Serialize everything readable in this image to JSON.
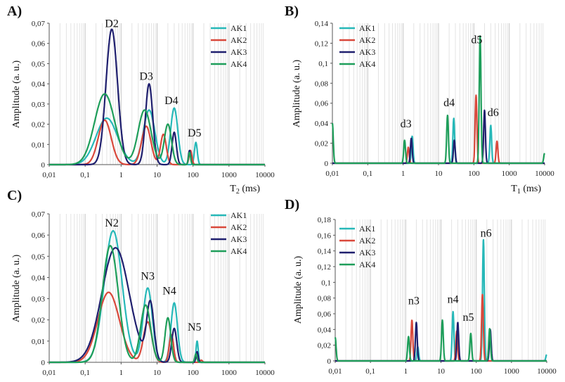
{
  "chart_data": [
    {
      "panel": "A)",
      "type": "line",
      "xscale": "log",
      "xlabel": "T2 (ms)",
      "ylabel": "Amplitude (a. u.)",
      "xlim": [
        0.01,
        10000
      ],
      "ylim": [
        0,
        0.07
      ],
      "xticks": [
        "0,01",
        "0,1",
        "1",
        "10",
        "100",
        "1000",
        "10000"
      ],
      "yticks": [
        "0",
        "0,01",
        "0,02",
        "0,03",
        "0,04",
        "0,05",
        "0,06",
        "0,07"
      ],
      "peak_labels": [
        {
          "text": "D2",
          "x": 0.55,
          "y": 0.068
        },
        {
          "text": "D3",
          "x": 5,
          "y": 0.042
        },
        {
          "text": "D4",
          "x": 25,
          "y": 0.03
        },
        {
          "text": "D5",
          "x": 110,
          "y": 0.014
        }
      ],
      "series": [
        {
          "name": "AK1",
          "color": "#26b8b8",
          "peaks": [
            [
              0.4,
              0.023,
              0.3
            ],
            [
              6,
              0.027,
              0.16
            ],
            [
              30,
              0.028,
              0.1
            ],
            [
              120,
              0.011,
              0.04
            ]
          ]
        },
        {
          "name": "AK2",
          "color": "#d9483b",
          "peaks": [
            [
              0.35,
              0.022,
              0.18
            ],
            [
              5,
              0.019,
              0.13
            ],
            [
              15,
              0.015,
              0.08
            ],
            [
              85,
              0.007,
              0.04
            ]
          ]
        },
        {
          "name": "AK3",
          "color": "#1f1f6e",
          "peaks": [
            [
              0.55,
              0.067,
              0.16
            ],
            [
              6,
              0.04,
              0.1
            ],
            [
              30,
              0.016,
              0.06
            ],
            [
              80,
              0.007,
              0.03
            ]
          ]
        },
        {
          "name": "AK4",
          "color": "#1e9e5a",
          "peaks": [
            [
              0.35,
              0.035,
              0.28
            ],
            [
              4.5,
              0.027,
              0.18
            ],
            [
              20,
              0.02,
              0.1
            ],
            [
              80,
              0.006,
              0.03
            ]
          ]
        }
      ],
      "legend": "top-right",
      "grid": "vertical log gridlines"
    },
    {
      "panel": "B)",
      "type": "line",
      "xscale": "log",
      "xlabel": "T1 (ms)",
      "ylabel": "Amplitude (a. u.)",
      "xlim": [
        0.01,
        10000
      ],
      "ylim": [
        0,
        0.14
      ],
      "xticks": [
        "0,01",
        "0,1",
        "1",
        "10",
        "100",
        "1000",
        "10000"
      ],
      "yticks": [
        "0",
        "0,02",
        "0,04",
        "0,06",
        "0,08",
        "0,1",
        "0,12",
        "0,14"
      ],
      "peak_labels": [
        {
          "text": "d3",
          "x": 1.2,
          "y": 0.036
        },
        {
          "text": "d4",
          "x": 20,
          "y": 0.057
        },
        {
          "text": "d5",
          "x": 120,
          "y": 0.12
        },
        {
          "text": "d6",
          "x": 350,
          "y": 0.047
        }
      ],
      "series": [
        {
          "name": "AK1",
          "color": "#26b8b8",
          "peaks": [
            [
              1.8,
              0.027,
              0.025
            ],
            [
              27,
              0.045,
              0.025
            ],
            [
              300,
              0.038,
              0.025
            ]
          ]
        },
        {
          "name": "AK2",
          "color": "#d9483b",
          "peaks": [
            [
              1.4,
              0.016,
              0.025
            ],
            [
              115,
              0.068,
              0.025
            ],
            [
              450,
              0.022,
              0.025
            ]
          ]
        },
        {
          "name": "AK3",
          "color": "#1f1f6e",
          "peaks": [
            [
              1.7,
              0.025,
              0.025
            ],
            [
              28,
              0.023,
              0.025
            ],
            [
              200,
              0.053,
              0.025
            ]
          ]
        },
        {
          "name": "AK4",
          "color": "#1e9e5a",
          "peaks": [
            [
              0.01,
              0.04,
              0.025
            ],
            [
              1.1,
              0.023,
              0.025
            ],
            [
              18,
              0.048,
              0.025
            ],
            [
              150,
              0.128,
              0.025
            ],
            [
              10000,
              0.01,
              0.025
            ]
          ]
        }
      ],
      "legend": "top-left",
      "grid": "vertical log gridlines"
    },
    {
      "panel": "C)",
      "type": "line",
      "xscale": "log",
      "xlabel": "",
      "ylabel": "Amplitude (a. u.)",
      "xlim": [
        0.01,
        10000
      ],
      "ylim": [
        0,
        0.07
      ],
      "xticks": [
        "0,01",
        "0,1",
        "1",
        "10",
        "100",
        "1000",
        "10000"
      ],
      "yticks": [
        "0",
        "0,01",
        "0,02",
        "0,03",
        "0,04",
        "0,05",
        "0,06",
        "0,07"
      ],
      "peak_labels": [
        {
          "text": "N2",
          "x": 0.55,
          "y": 0.064
        },
        {
          "text": "N3",
          "x": 5.5,
          "y": 0.039
        },
        {
          "text": "N4",
          "x": 22,
          "y": 0.032
        },
        {
          "text": "N5",
          "x": 110,
          "y": 0.015
        }
      ],
      "series": [
        {
          "name": "AK1",
          "color": "#26b8b8",
          "peaks": [
            [
              0.6,
              0.062,
              0.25
            ],
            [
              5.5,
              0.035,
              0.13
            ],
            [
              30,
              0.028,
              0.09
            ],
            [
              130,
              0.01,
              0.03
            ]
          ]
        },
        {
          "name": "AK2",
          "color": "#d9483b",
          "peaks": [
            [
              0.45,
              0.033,
              0.3
            ],
            [
              5.5,
              0.019,
              0.12
            ],
            [
              25,
              0.013,
              0.06
            ],
            [
              170,
              0.001,
              0.03
            ]
          ]
        },
        {
          "name": "AK3",
          "color": "#1f1f6e",
          "peaks": [
            [
              0.7,
              0.054,
              0.38
            ],
            [
              6.5,
              0.027,
              0.1
            ],
            [
              30,
              0.016,
              0.07
            ],
            [
              130,
              0.005,
              0.03
            ]
          ]
        },
        {
          "name": "AK4",
          "color": "#1e9e5a",
          "peaks": [
            [
              0.5,
              0.055,
              0.22
            ],
            [
              4.8,
              0.027,
              0.14
            ],
            [
              20,
              0.021,
              0.08
            ],
            [
              120,
              0.004,
              0.03
            ]
          ]
        }
      ],
      "legend": "top-right",
      "grid": "vertical log gridlines"
    },
    {
      "panel": "D)",
      "type": "line",
      "xscale": "log",
      "xlabel": "",
      "ylabel": "Amplitude (a. u.)",
      "xlim": [
        0.01,
        10000
      ],
      "ylim": [
        0,
        0.18
      ],
      "xticks": [
        "0,01",
        "0,1",
        "1",
        "10",
        "100",
        "1000",
        "10000"
      ],
      "yticks": [
        "0",
        "0,02",
        "0,04",
        "0,06",
        "0,08",
        "0,1",
        "0,12",
        "0,14",
        "0,16",
        "0,18"
      ],
      "peak_labels": [
        {
          "text": "n3",
          "x": 1.7,
          "y": 0.072
        },
        {
          "text": "n4",
          "x": 22,
          "y": 0.074
        },
        {
          "text": "n5",
          "x": 60,
          "y": 0.051
        },
        {
          "text": "n6",
          "x": 190,
          "y": 0.158
        }
      ],
      "series": [
        {
          "name": "AK1",
          "color": "#26b8b8",
          "peaks": [
            [
              2.2,
              0.018,
              0.025
            ],
            [
              22,
              0.063,
              0.025
            ],
            [
              160,
              0.155,
              0.025
            ],
            [
              10000,
              0.008,
              0.025
            ]
          ]
        },
        {
          "name": "AK2",
          "color": "#d9483b",
          "peaks": [
            [
              1.5,
              0.052,
              0.025
            ],
            [
              28,
              0.038,
              0.025
            ],
            [
              150,
              0.085,
              0.025
            ]
          ]
        },
        {
          "name": "AK3",
          "color": "#1f1f6e",
          "peaks": [
            [
              2,
              0.049,
              0.025
            ],
            [
              30,
              0.049,
              0.025
            ],
            [
              250,
              0.04,
              0.025
            ]
          ]
        },
        {
          "name": "AK4",
          "color": "#1e9e5a",
          "peaks": [
            [
              0.01,
              0.03,
              0.025
            ],
            [
              1.2,
              0.031,
              0.025
            ],
            [
              11,
              0.052,
              0.025
            ],
            [
              70,
              0.035,
              0.025
            ],
            [
              240,
              0.041,
              0.025
            ]
          ]
        }
      ],
      "legend": "top-left",
      "grid": "vertical log gridlines"
    }
  ]
}
